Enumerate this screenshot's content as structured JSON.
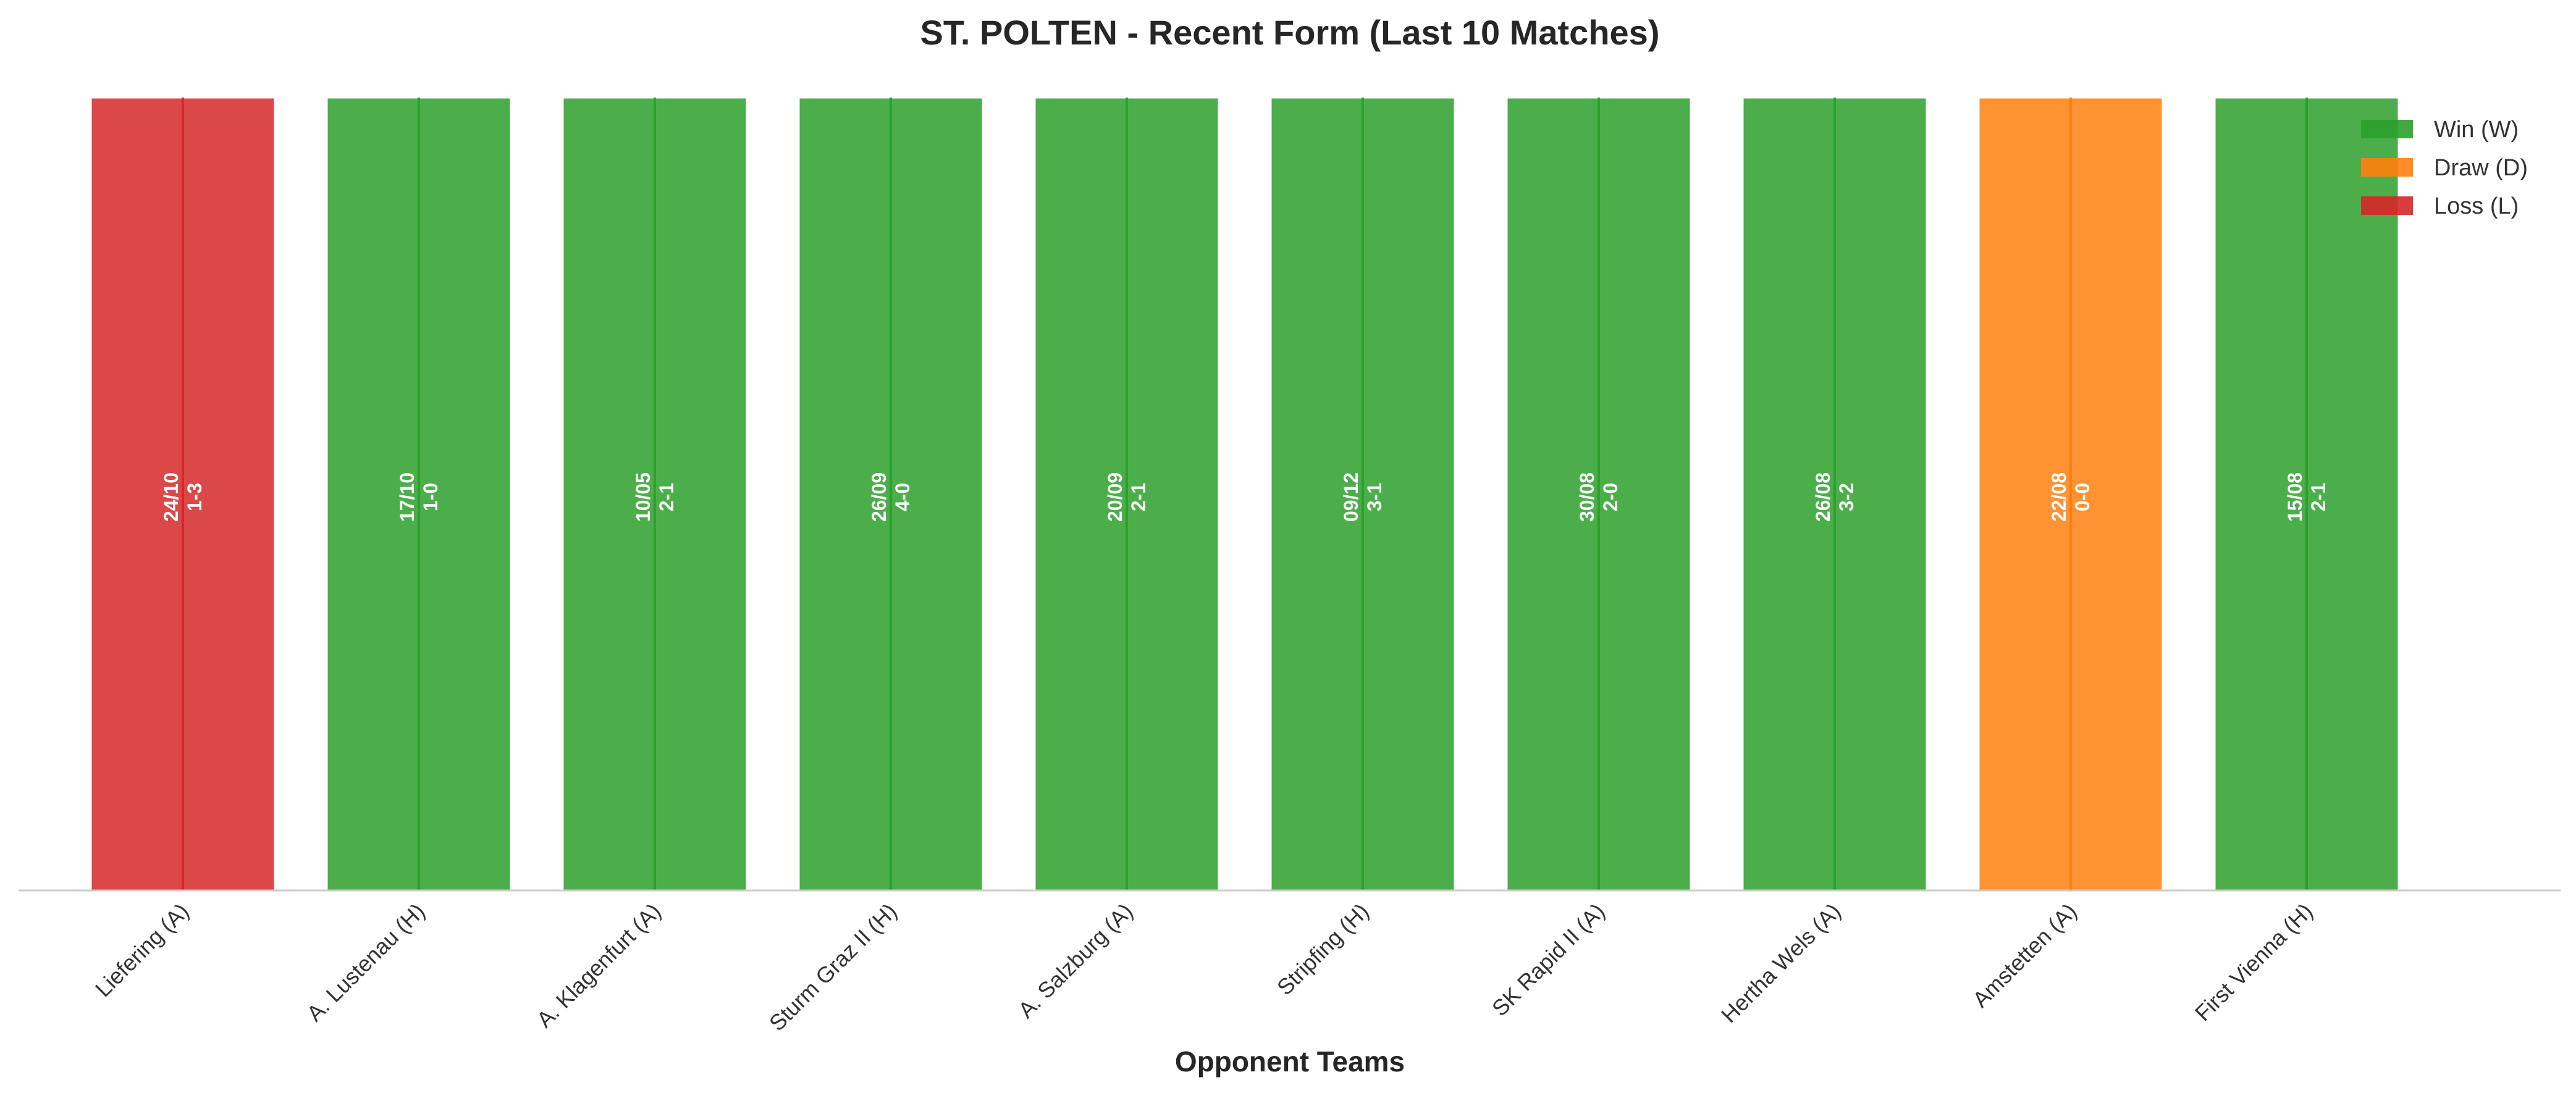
{
  "chart_data": {
    "type": "bar",
    "title": "ST. POLTEN - Recent Form (Last 10 Matches)",
    "xlabel": "Opponent Teams",
    "ylabel": "",
    "categories": [
      "Liefering (A)",
      "A. Lustenau (H)",
      "A. Klagenfurt (A)",
      "Sturm Graz II (H)",
      "A. Salzburg (A)",
      "Stripfing (H)",
      "SK Rapid II (A)",
      "Hertha Wels (A)",
      "Amstetten (A)",
      "First Vienna (H)"
    ],
    "values": [
      1,
      1,
      1,
      1,
      1,
      1,
      1,
      1,
      1,
      1
    ],
    "ylim": [
      0,
      1.0
    ],
    "results": [
      "L",
      "W",
      "W",
      "W",
      "W",
      "W",
      "W",
      "W",
      "D",
      "W"
    ],
    "bar_labels": [
      {
        "date": "24/10",
        "score": "1-3"
      },
      {
        "date": "17/10",
        "score": "1-0"
      },
      {
        "date": "10/05",
        "score": "2-1"
      },
      {
        "date": "26/09",
        "score": "4-0"
      },
      {
        "date": "20/09",
        "score": "2-1"
      },
      {
        "date": "09/12",
        "score": "3-1"
      },
      {
        "date": "30/08",
        "score": "2-0"
      },
      {
        "date": "26/08",
        "score": "3-2"
      },
      {
        "date": "22/08",
        "score": "0-0"
      },
      {
        "date": "15/08",
        "score": "2-1"
      }
    ],
    "legend": {
      "placement": "top-right",
      "entries": [
        {
          "key": "W",
          "label": "Win (W)",
          "color": "#2ca02c"
        },
        {
          "key": "D",
          "label": "Draw (D)",
          "color": "#ff7f0e"
        },
        {
          "key": "L",
          "label": "Loss (L)",
          "color": "#d62728"
        }
      ]
    },
    "grid": false
  }
}
